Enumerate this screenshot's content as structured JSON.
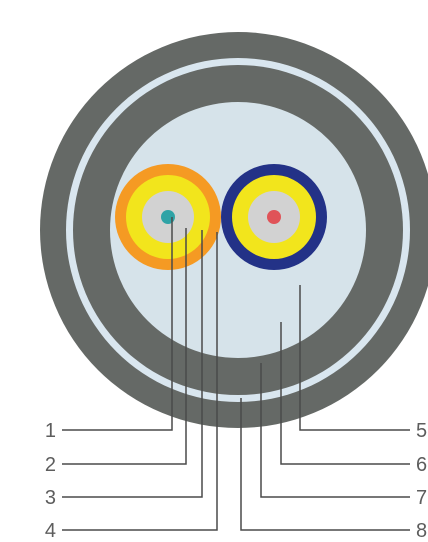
{
  "colors": {
    "outer_jacket": "#656966",
    "thin_ring": "#d9e6ef",
    "armor_layer": "#656966",
    "core_fill": "#d6e3ea",
    "left_fiber_outer": "#f59a23",
    "left_fiber_mid": "#f2e51c",
    "left_fiber_inner": "#d2d2d2",
    "left_fiber_core": "#2fa3a6",
    "right_fiber_outer": "#233287",
    "right_fiber_mid": "#f2e51c",
    "right_fiber_inner": "#d2d2d2",
    "right_fiber_core": "#e05358",
    "leader_line": "#4a4a4a",
    "label_text": "#5d5d5d"
  },
  "labels": {
    "n1": "1",
    "n2": "2",
    "n3": "3",
    "n4": "4",
    "n5": "5",
    "n6": "6",
    "n7": "7",
    "n8": "8"
  }
}
